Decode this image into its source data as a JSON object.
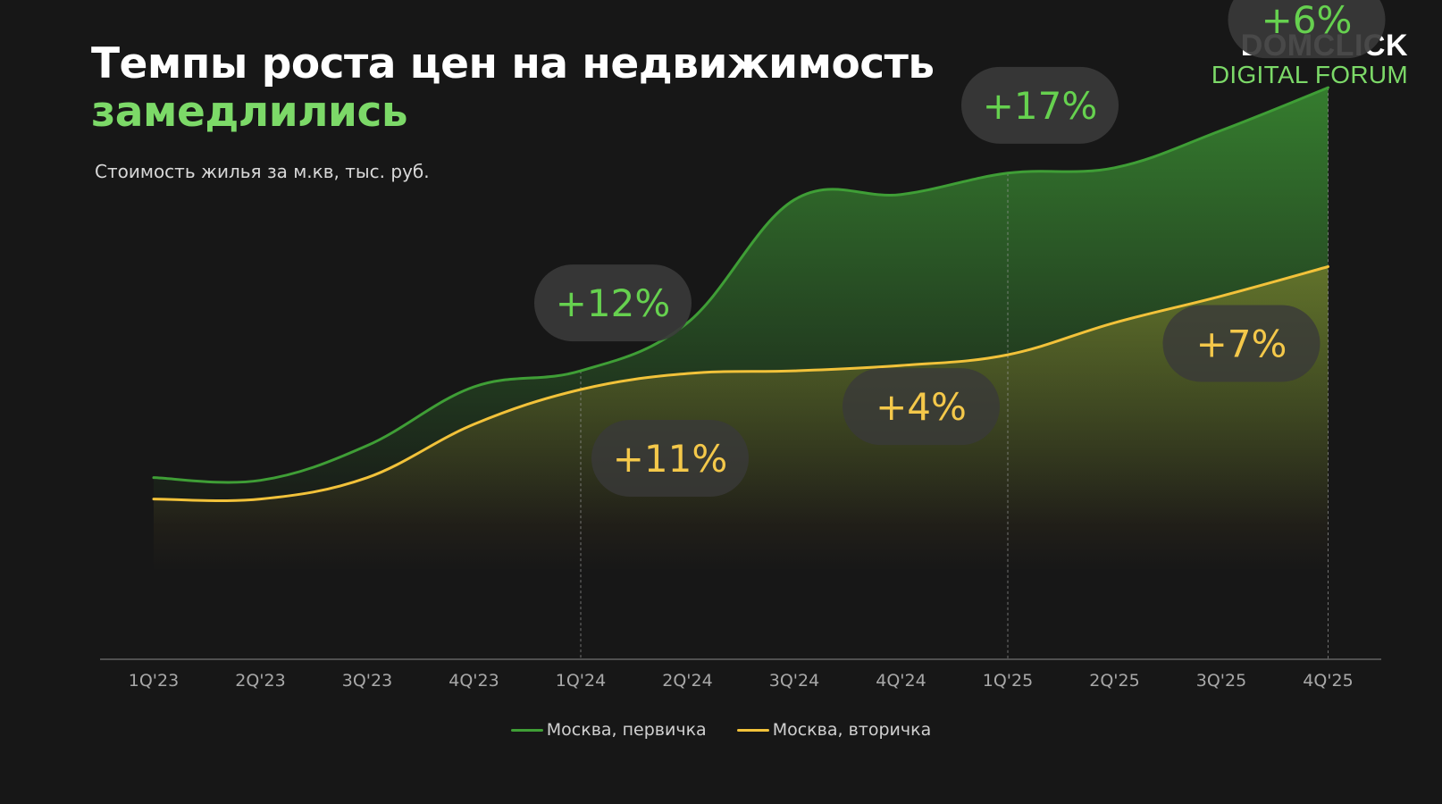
{
  "title": {
    "line1": "Темпы роста цен на недвижимость",
    "line2": "замедлились"
  },
  "logo": {
    "brand": "DOMCLICK",
    "event": "DIGITAL FORUM"
  },
  "colors": {
    "primary_line": "#3f9e36",
    "secondary_line": "#f2c23a",
    "accent_green": "#7cd968",
    "bubble_green_text": "#66d14f",
    "bubble_yellow_text": "#f4c84a",
    "bubble_bg": "#3a3a3a"
  },
  "chart_data": {
    "type": "area",
    "title": "",
    "subtitle": "Стоимость жилья за м.кв, тыс. руб.",
    "xlabel": "",
    "ylabel": "",
    "categories": [
      "1Q'23",
      "2Q'23",
      "3Q'23",
      "4Q'23",
      "1Q'24",
      "2Q'24",
      "3Q'24",
      "4Q'24",
      "1Q'25",
      "2Q'25",
      "3Q'25",
      "4Q'25"
    ],
    "ylim": [
      0,
      100
    ],
    "series": [
      {
        "name": "Москва, первичка",
        "color": "#3f9e36",
        "values": [
          34,
          33.5,
          40,
          51,
          54,
          63,
          86,
          87,
          91,
          92,
          99,
          107
        ]
      },
      {
        "name": "Москва, вторичка",
        "color": "#f2c23a",
        "values": [
          30,
          30,
          34,
          44,
          50.5,
          53.5,
          54,
          55,
          57,
          63,
          68,
          73.5
        ]
      }
    ],
    "markers": [
      "1Q'24",
      "1Q'25",
      "4Q'25"
    ],
    "annotations": [
      {
        "text": "+12%",
        "series": 0,
        "category": "1Q'24"
      },
      {
        "text": "+11%",
        "series": 1,
        "category": "1Q'24"
      },
      {
        "text": "+17%",
        "series": 0,
        "category": "1Q'25"
      },
      {
        "text": "+4%",
        "series": 1,
        "category": "1Q'25"
      },
      {
        "text": "+6%",
        "series": 0,
        "category": "4Q'25"
      },
      {
        "text": "+7%",
        "series": 1,
        "category": "4Q'25"
      }
    ],
    "grid": false,
    "legend_position": "bottom-center"
  }
}
